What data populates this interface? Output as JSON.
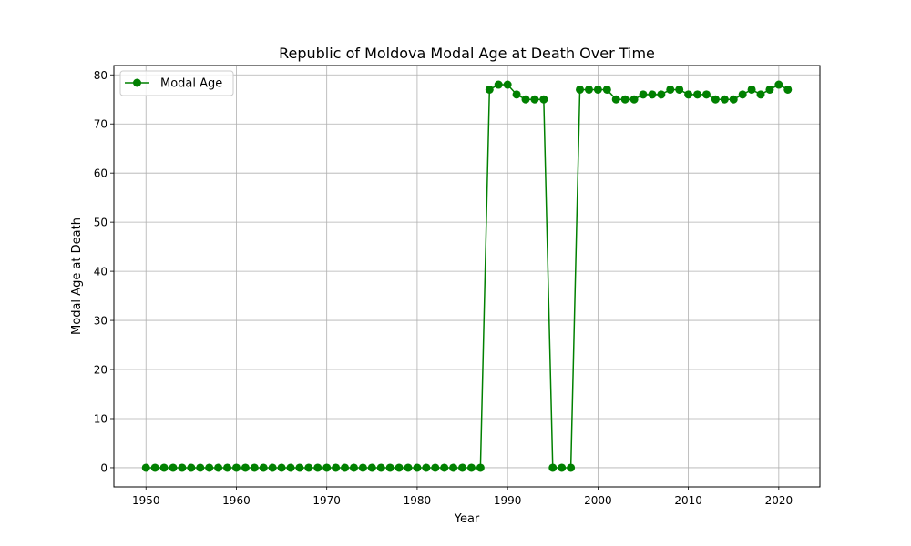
{
  "chart_data": {
    "type": "line",
    "title": "Republic of Moldova Modal Age at Death Over Time",
    "xlabel": "Year",
    "ylabel": "Modal Age at Death",
    "xlim": [
      1946.45,
      2024.55
    ],
    "ylim": [
      -3.9,
      81.9
    ],
    "xticks": [
      1950,
      1960,
      1970,
      1980,
      1990,
      2000,
      2010,
      2020
    ],
    "yticks": [
      0,
      10,
      20,
      30,
      40,
      50,
      60,
      70,
      80
    ],
    "grid": true,
    "legend_position": "top-left",
    "series": [
      {
        "name": "Modal Age",
        "color": "#008000",
        "marker": "circle",
        "x": [
          1950,
          1951,
          1952,
          1953,
          1954,
          1955,
          1956,
          1957,
          1958,
          1959,
          1960,
          1961,
          1962,
          1963,
          1964,
          1965,
          1966,
          1967,
          1968,
          1969,
          1970,
          1971,
          1972,
          1973,
          1974,
          1975,
          1976,
          1977,
          1978,
          1979,
          1980,
          1981,
          1982,
          1983,
          1984,
          1985,
          1986,
          1987,
          1988,
          1989,
          1990,
          1991,
          1992,
          1993,
          1994,
          1995,
          1996,
          1997,
          1998,
          1999,
          2000,
          2001,
          2002,
          2003,
          2004,
          2005,
          2006,
          2007,
          2008,
          2009,
          2010,
          2011,
          2012,
          2013,
          2014,
          2015,
          2016,
          2017,
          2018,
          2019,
          2020,
          2021
        ],
        "y": [
          0,
          0,
          0,
          0,
          0,
          0,
          0,
          0,
          0,
          0,
          0,
          0,
          0,
          0,
          0,
          0,
          0,
          0,
          0,
          0,
          0,
          0,
          0,
          0,
          0,
          0,
          0,
          0,
          0,
          0,
          0,
          0,
          0,
          0,
          0,
          0,
          0,
          0,
          77,
          78,
          78,
          76,
          75,
          75,
          75,
          0,
          0,
          0,
          77,
          77,
          77,
          77,
          75,
          75,
          75,
          76,
          76,
          76,
          77,
          77,
          76,
          76,
          76,
          75,
          75,
          75,
          76,
          77,
          76,
          77,
          78,
          77
        ]
      }
    ]
  }
}
